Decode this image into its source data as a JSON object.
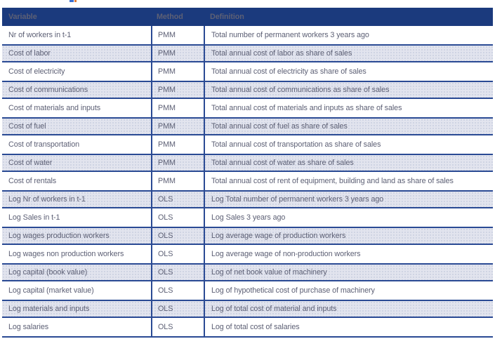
{
  "fragment": {
    "note_colors": {
      "blue": "#3b6fd0",
      "orange": "#e07b39"
    }
  },
  "table": {
    "columns": [
      "Variable",
      "Method",
      "Definition"
    ],
    "rows": [
      {
        "variable": "Nr of workers in t-1",
        "method": "PMM",
        "definition": "Total number of permanent workers 3 years ago"
      },
      {
        "variable": "Cost of labor",
        "method": "PMM",
        "definition": "Total annual cost of labor as share of sales"
      },
      {
        "variable": "Cost of electricity",
        "method": "PMM",
        "definition": "Total annual cost of electricity as share of sales"
      },
      {
        "variable": "Cost of communications",
        "method": "PMM",
        "definition": "Total annual cost of communications as share of sales"
      },
      {
        "variable": "Cost of materials and inputs",
        "method": "PMM",
        "definition": "Total annual cost of materials and inputs as share of sales"
      },
      {
        "variable": "Cost of fuel",
        "method": "PMM",
        "definition": "Total annual cost of fuel as share of sales"
      },
      {
        "variable": "Cost of transportation",
        "method": "PMM",
        "definition": "Total annual cost of transportation as share of sales"
      },
      {
        "variable": "Cost of water",
        "method": "PMM",
        "definition": "Total annual cost of water as share of sales"
      },
      {
        "variable": "Cost of rentals",
        "method": "PMM",
        "definition": "Total annual cost of rent of equipment, building and land as share of sales"
      },
      {
        "variable": "Log Nr of workers in t-1",
        "method": "OLS",
        "definition": "Log Total number of permanent workers 3 years ago"
      },
      {
        "variable": "Log Sales in t-1",
        "method": "OLS",
        "definition": "Log Sales 3 years ago"
      },
      {
        "variable": "Log wages production workers",
        "method": "OLS",
        "definition": "Log average wage of production workers"
      },
      {
        "variable": "Log wages non production workers",
        "method": "OLS",
        "definition": "Log average wage of non-production workers"
      },
      {
        "variable": "Log capital (book value)",
        "method": "OLS",
        "definition": "Log of net book value of machinery"
      },
      {
        "variable": "Log capital (market value)",
        "method": "OLS",
        "definition": "Log of hypothetical cost of purchase of machinery"
      },
      {
        "variable": "Log materials and inputs",
        "method": "OLS",
        "definition": "Log of total cost of material and inputs"
      },
      {
        "variable": "Log salaries",
        "method": "OLS",
        "definition": "Log of total cost of salaries"
      }
    ],
    "colors": {
      "header_bg": "#1b3a7d",
      "header_text": "#ffffff",
      "border": "#2a4a94",
      "shaded_row_bg": "#e2e4ee",
      "row_text": "#5d6075"
    }
  }
}
